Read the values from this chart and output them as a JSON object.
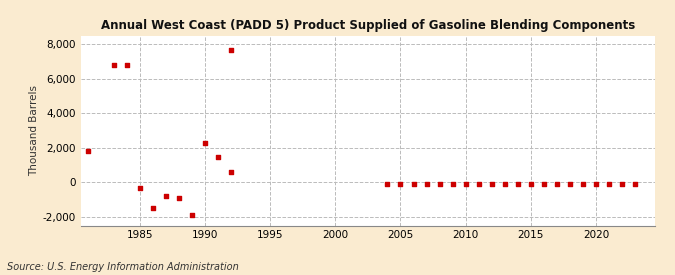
{
  "title": "Annual West Coast (PADD 5) Product Supplied of Gasoline Blending Components",
  "ylabel": "Thousand Barrels",
  "source": "Source: U.S. Energy Information Administration",
  "background_color": "#faebd0",
  "plot_background_color": "#ffffff",
  "marker_color": "#cc0000",
  "grid_color": "#bbbbbb",
  "years": [
    1981,
    1983,
    1984,
    1985,
    1986,
    1987,
    1988,
    1989,
    1990,
    1991,
    1992,
    2004,
    2005,
    2006,
    2007,
    2008,
    2009,
    2010,
    2011,
    2012,
    2013,
    2014,
    2015,
    2016,
    2017,
    2018,
    2019,
    2020,
    2021,
    2022,
    2023
  ],
  "values": [
    1800,
    6800,
    6800,
    -300,
    -1500,
    -800,
    -900,
    -1900,
    2300,
    1450,
    600,
    -100,
    -100,
    -80,
    -100,
    -100,
    -80,
    -80,
    -80,
    -100,
    -80,
    -80,
    -80,
    -80,
    -80,
    -80,
    -80,
    -80,
    -80,
    -80,
    -80
  ],
  "extra_years": [
    1992
  ],
  "extra_values": [
    7700
  ],
  "ylim": [
    -2500,
    8500
  ],
  "yticks": [
    -2000,
    0,
    2000,
    4000,
    6000,
    8000
  ],
  "xlim": [
    1980.5,
    2024.5
  ],
  "xticks": [
    1985,
    1990,
    1995,
    2000,
    2005,
    2010,
    2015,
    2020
  ]
}
